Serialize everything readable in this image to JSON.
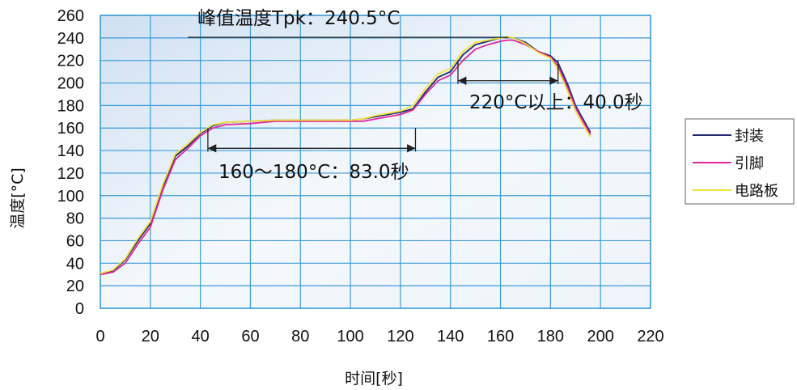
{
  "chart_data": {
    "type": "line",
    "title": "",
    "xlabel": "时间[秒]",
    "ylabel": "温度[°C]",
    "xlim": [
      0,
      220
    ],
    "ylim": [
      0,
      260
    ],
    "xticks": [
      0,
      20,
      40,
      60,
      80,
      100,
      120,
      140,
      160,
      180,
      200,
      220
    ],
    "yticks": [
      0,
      20,
      40,
      60,
      80,
      100,
      120,
      140,
      160,
      180,
      200,
      220,
      240,
      260
    ],
    "grid": true,
    "legend_position": "right",
    "colors": {
      "grid": "#3a9ad9",
      "background_start": "#cfe0f2",
      "background_end": "#eef4fb",
      "arrow": "#222222"
    },
    "series": [
      {
        "name": "封装",
        "color": "#1f2a6e",
        "x": [
          0,
          5,
          10,
          15,
          20,
          25,
          30,
          35,
          40,
          45,
          50,
          60,
          70,
          80,
          90,
          100,
          105,
          110,
          115,
          120,
          125,
          130,
          135,
          140,
          145,
          150,
          155,
          160,
          163,
          165,
          170,
          175,
          180,
          183,
          187,
          190,
          193,
          196
        ],
        "y": [
          30,
          33,
          43,
          60,
          75,
          108,
          135,
          144,
          155,
          162,
          165,
          166,
          167,
          167,
          167,
          167,
          168,
          170,
          172,
          174,
          177,
          192,
          205,
          210,
          225,
          234,
          237,
          240,
          240.5,
          240,
          236,
          228,
          224,
          218,
          198,
          180,
          168,
          156
        ]
      },
      {
        "name": "引脚",
        "color": "#e0279a",
        "x": [
          0,
          5,
          10,
          15,
          20,
          25,
          30,
          35,
          40,
          45,
          50,
          60,
          70,
          80,
          90,
          100,
          105,
          110,
          115,
          120,
          125,
          130,
          135,
          140,
          145,
          150,
          155,
          160,
          163,
          165,
          170,
          175,
          180,
          183,
          187,
          190,
          193,
          196
        ],
        "y": [
          30,
          32,
          40,
          57,
          72,
          105,
          132,
          142,
          153,
          160,
          163,
          164,
          166,
          166,
          166,
          166,
          166,
          168,
          170,
          172,
          176,
          190,
          202,
          207,
          220,
          230,
          234,
          237,
          238,
          238,
          234,
          228,
          223,
          215,
          195,
          178,
          166,
          154
        ]
      },
      {
        "name": "电路板",
        "color": "#f2e33a",
        "x": [
          0,
          5,
          10,
          15,
          20,
          25,
          30,
          35,
          40,
          45,
          50,
          60,
          70,
          80,
          90,
          100,
          105,
          110,
          115,
          120,
          125,
          130,
          135,
          140,
          145,
          150,
          155,
          160,
          163,
          165,
          170,
          175,
          180,
          183,
          187,
          190,
          193,
          196
        ],
        "y": [
          31,
          34,
          44,
          62,
          77,
          110,
          137,
          146,
          156,
          163,
          165,
          166,
          167,
          167,
          167,
          167,
          168,
          171,
          173,
          175,
          180,
          195,
          208,
          213,
          228,
          236,
          238,
          240,
          241,
          240,
          235,
          227,
          222,
          212,
          192,
          175,
          163,
          152
        ]
      }
    ],
    "annotations": [
      {
        "text": "峰值温度Tpk：240.5°C"
      },
      {
        "text": "220°C以上：40.0秒"
      },
      {
        "text": "160～180°C：83.0秒"
      }
    ]
  }
}
